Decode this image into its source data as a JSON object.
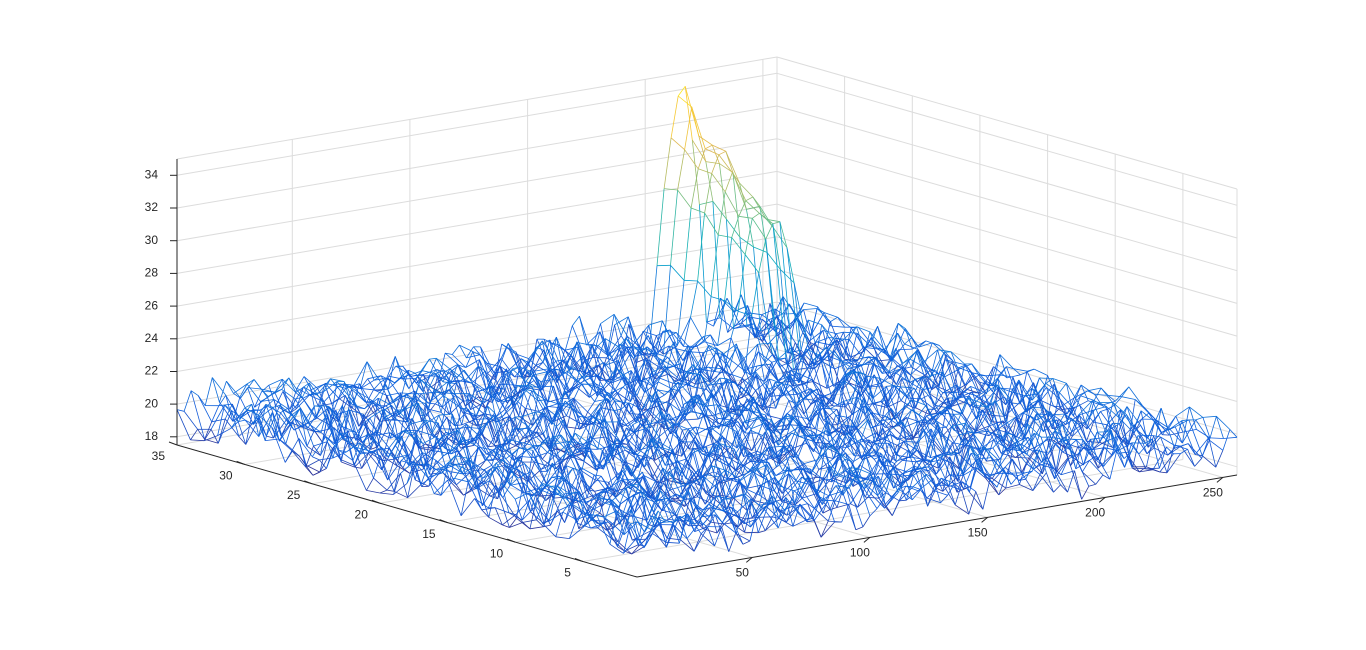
{
  "chart_data": {
    "type": "surface-mesh",
    "title": "",
    "xlabel": "",
    "ylabel": "",
    "zlabel": "",
    "grid": true,
    "colormap": "parula",
    "xlim": [
      1,
      256
    ],
    "ylim": [
      1,
      35
    ],
    "zlim": [
      17.5,
      35
    ],
    "x_ticks": [
      50,
      100,
      150,
      200,
      250
    ],
    "y_ticks": [
      5,
      10,
      15,
      20,
      25,
      30,
      35
    ],
    "z_ticks": [
      18,
      20,
      22,
      24,
      26,
      28,
      30,
      32,
      34
    ],
    "x_tick_labels": [
      "50",
      "100",
      "150",
      "200",
      "250"
    ],
    "y_tick_labels": [
      "5",
      "10",
      "15",
      "20",
      "25",
      "30",
      "35"
    ],
    "z_tick_labels": [
      "18",
      "20",
      "22",
      "24",
      "26",
      "28",
      "30",
      "32",
      "34"
    ],
    "noise_floor": {
      "mean": 19.5,
      "min": 17.5,
      "max": 22.5
    },
    "peak": {
      "x_range": [
        205,
        225
      ],
      "y_range": [
        28,
        35
      ],
      "max": 34.8
    }
  }
}
